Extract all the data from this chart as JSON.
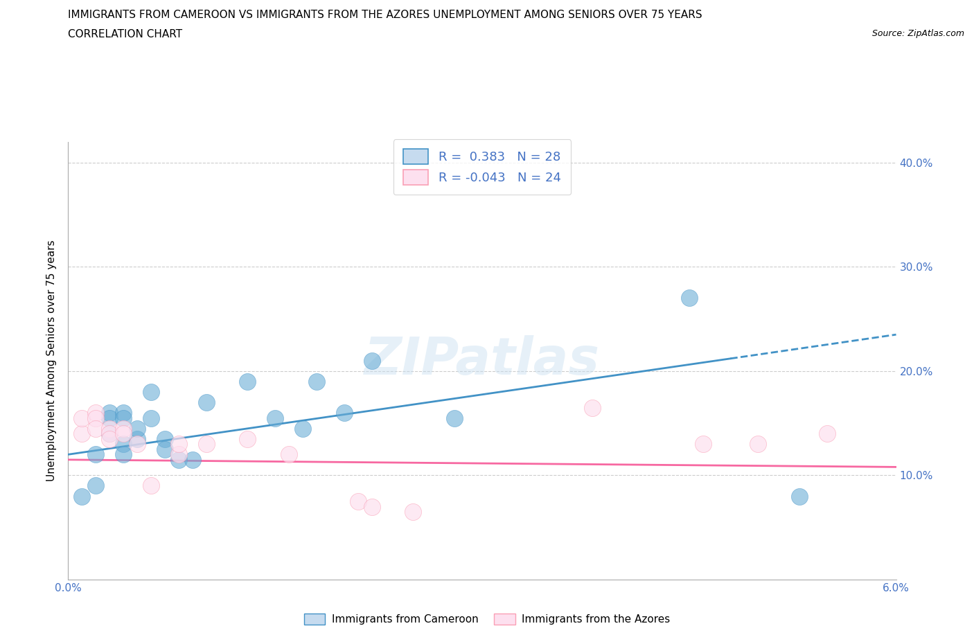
{
  "title_line1": "IMMIGRANTS FROM CAMEROON VS IMMIGRANTS FROM THE AZORES UNEMPLOYMENT AMONG SENIORS OVER 75 YEARS",
  "title_line2": "CORRELATION CHART",
  "source_text": "Source: ZipAtlas.com",
  "ylabel": "Unemployment Among Seniors over 75 years",
  "xlim": [
    0.0,
    0.06
  ],
  "ylim": [
    0.0,
    0.42
  ],
  "x_ticks": [
    0.0,
    0.01,
    0.02,
    0.03,
    0.04,
    0.05,
    0.06
  ],
  "x_tick_labels": [
    "0.0%",
    "",
    "",
    "",
    "",
    "",
    "6.0%"
  ],
  "y_ticks": [
    0.0,
    0.1,
    0.2,
    0.3,
    0.4
  ],
  "y_tick_labels_right": [
    "",
    "10.0%",
    "20.0%",
    "30.0%",
    "40.0%"
  ],
  "watermark": "ZIPatlas",
  "legend_r1": "R =  0.383",
  "legend_n1": "N = 28",
  "legend_r2": "R = -0.043",
  "legend_n2": "N = 24",
  "blue_color": "#6baed6",
  "blue_fill": "#c6dbef",
  "pink_color": "#fa9fb5",
  "pink_fill": "#fde0ef",
  "line_blue": "#4292c6",
  "line_pink": "#f768a1",
  "blue_scatter": [
    [
      0.001,
      0.08
    ],
    [
      0.002,
      0.09
    ],
    [
      0.002,
      0.12
    ],
    [
      0.003,
      0.16
    ],
    [
      0.003,
      0.14
    ],
    [
      0.003,
      0.155
    ],
    [
      0.004,
      0.16
    ],
    [
      0.004,
      0.155
    ],
    [
      0.004,
      0.13
    ],
    [
      0.004,
      0.12
    ],
    [
      0.005,
      0.135
    ],
    [
      0.005,
      0.145
    ],
    [
      0.006,
      0.155
    ],
    [
      0.006,
      0.18
    ],
    [
      0.007,
      0.135
    ],
    [
      0.007,
      0.125
    ],
    [
      0.008,
      0.115
    ],
    [
      0.009,
      0.115
    ],
    [
      0.01,
      0.17
    ],
    [
      0.013,
      0.19
    ],
    [
      0.015,
      0.155
    ],
    [
      0.017,
      0.145
    ],
    [
      0.018,
      0.19
    ],
    [
      0.02,
      0.16
    ],
    [
      0.022,
      0.21
    ],
    [
      0.028,
      0.155
    ],
    [
      0.045,
      0.27
    ],
    [
      0.053,
      0.08
    ]
  ],
  "pink_scatter": [
    [
      0.001,
      0.14
    ],
    [
      0.001,
      0.155
    ],
    [
      0.002,
      0.16
    ],
    [
      0.002,
      0.155
    ],
    [
      0.002,
      0.145
    ],
    [
      0.003,
      0.145
    ],
    [
      0.003,
      0.14
    ],
    [
      0.003,
      0.135
    ],
    [
      0.004,
      0.145
    ],
    [
      0.004,
      0.14
    ],
    [
      0.005,
      0.13
    ],
    [
      0.006,
      0.09
    ],
    [
      0.008,
      0.12
    ],
    [
      0.008,
      0.13
    ],
    [
      0.01,
      0.13
    ],
    [
      0.013,
      0.135
    ],
    [
      0.016,
      0.12
    ],
    [
      0.021,
      0.075
    ],
    [
      0.022,
      0.07
    ],
    [
      0.025,
      0.065
    ],
    [
      0.038,
      0.165
    ],
    [
      0.046,
      0.13
    ],
    [
      0.05,
      0.13
    ],
    [
      0.055,
      0.14
    ]
  ],
  "blue_trendline": [
    [
      0.0,
      0.12
    ],
    [
      0.06,
      0.235
    ]
  ],
  "pink_trendline": [
    [
      0.0,
      0.115
    ],
    [
      0.06,
      0.108
    ]
  ],
  "blue_trendline_solid_end": 0.048,
  "grid_color": "#cccccc",
  "background_color": "#ffffff",
  "title_fontsize": 11,
  "legend_fontsize": 13,
  "axis_label_fontsize": 11,
  "tick_fontsize": 11,
  "tick_color": "#4472c4"
}
